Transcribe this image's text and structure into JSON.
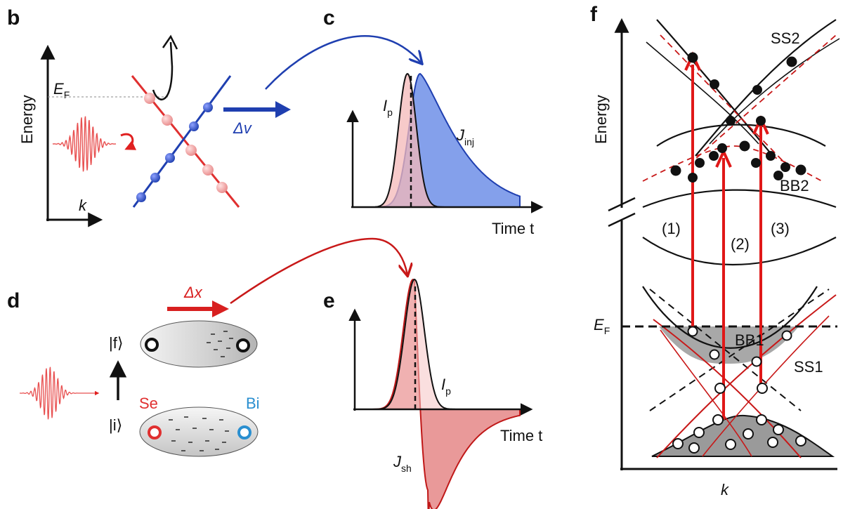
{
  "panels": {
    "b": {
      "letter": "b",
      "y_axis_label": "Energy",
      "x_axis_label": "k",
      "fermi_label_main": "E",
      "fermi_label_sub": "F",
      "velocity_label": "Δv",
      "colors": {
        "red": "#e03030",
        "blue": "#1f3fb0"
      }
    },
    "c": {
      "letter": "c",
      "pulse_label_main": "I",
      "pulse_label_sub": "p",
      "current_label_main": "J",
      "current_label_sub": "inj",
      "time_label": "Time t"
    },
    "d": {
      "letter": "d",
      "displacement_label": "Δx",
      "final_state": "|f⟩",
      "initial_state": "|i⟩",
      "atom_left": "Se",
      "atom_right": "Bi",
      "colors": {
        "se": "#e03030",
        "bi": "#2a8fd0"
      }
    },
    "e": {
      "letter": "e",
      "pulse_label_main": "I",
      "pulse_label_sub": "p",
      "current_label_main": "J",
      "current_label_sub": "sh",
      "time_label": "Time t"
    },
    "f": {
      "letter": "f",
      "y_axis_label": "Energy",
      "x_axis_label": "k",
      "fermi_label_main": "E",
      "fermi_label_sub": "F",
      "band_labels": [
        "SS2",
        "BB2",
        "BB1",
        "SS1"
      ],
      "transition_labels": [
        "(1)",
        "(2)",
        "(3)"
      ]
    }
  }
}
